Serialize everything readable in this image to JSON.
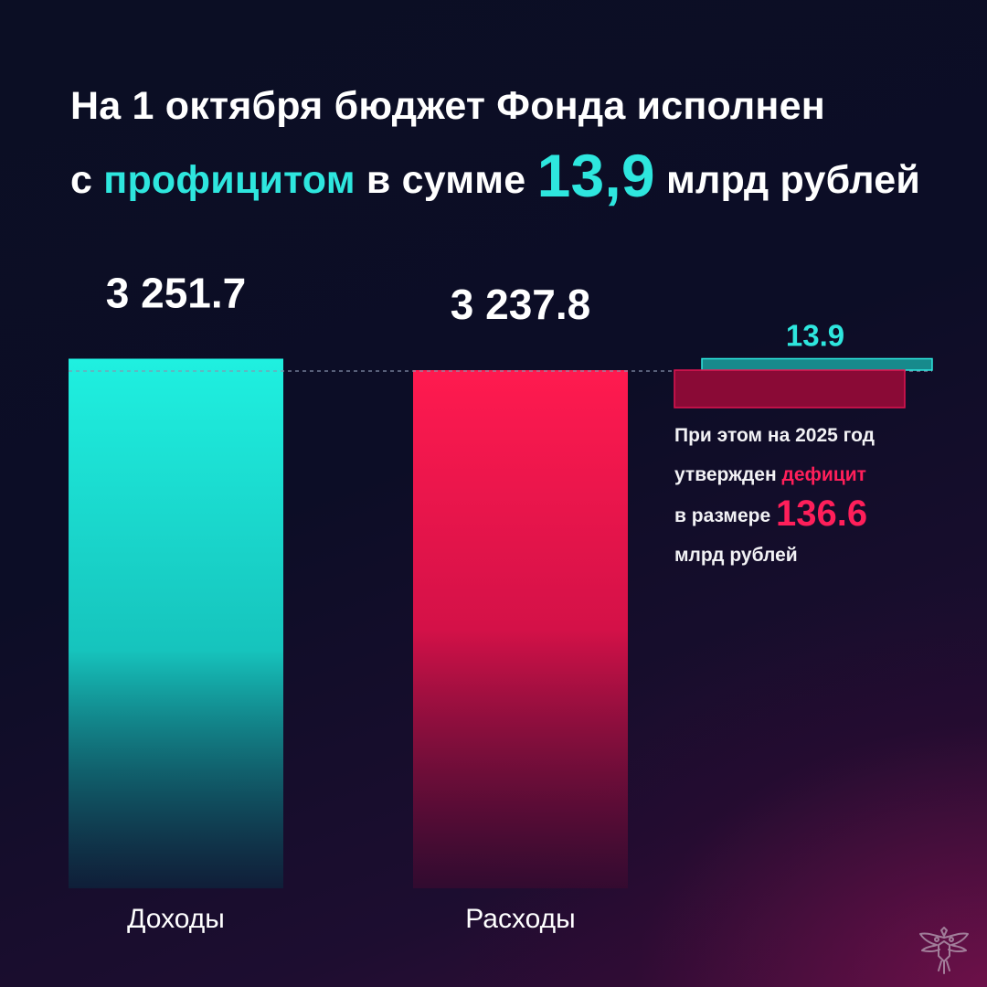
{
  "headline": {
    "line1": "На 1 октября бюджет Фонда исполнен",
    "line2_prefix": "с ",
    "line2_accent": "профицитом",
    "line2_mid": " в сумме ",
    "line2_value": "13,9",
    "line2_suffix": " млрд рублей"
  },
  "colors": {
    "accent": "#2ee6de",
    "income": "#20e8da",
    "expense": "#ff1a4f",
    "deficit": "#ff1f5a",
    "background": "#0c0d26"
  },
  "chart_data": {
    "type": "bar",
    "categories": [
      "Доходы",
      "Расходы"
    ],
    "values": [
      3251.7,
      3237.8
    ],
    "value_labels": [
      "3 251.7",
      "3 237.8"
    ],
    "surplus": {
      "value": 13.9,
      "label": "13.9"
    },
    "deficit_plan": {
      "value": -136.6
    },
    "title": "",
    "xlabel": "",
    "ylabel": ""
  },
  "note": {
    "line1": "При этом на 2025 год",
    "line2_prefix": "утвержден ",
    "line2_red": "дефицит",
    "line3_prefix": "в размере ",
    "line3_value": "136.6",
    "line4": "млрд рублей"
  },
  "icons": {
    "emblem": "double-headed-eagle-emblem-icon"
  }
}
